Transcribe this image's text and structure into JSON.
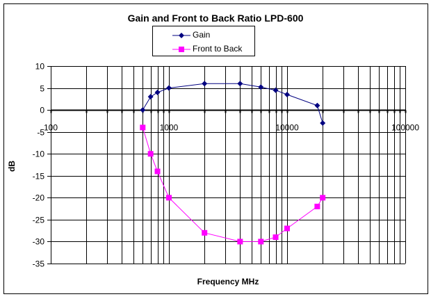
{
  "chart_data": {
    "type": "line",
    "title": "Gain and Front to Back Ratio LPD-600",
    "xlabel": "Frequency MHz",
    "ylabel": "dB",
    "xscale": "log",
    "xlim": [
      100,
      100000
    ],
    "ylim": [
      -35,
      10
    ],
    "x_ticks": [
      "100",
      "1000",
      "10000",
      "100000"
    ],
    "y_ticks": [
      "10",
      "5",
      "0",
      "-5",
      "-10",
      "-15",
      "-20",
      "-25",
      "-30",
      "-35"
    ],
    "grid": true,
    "legend_position": "top-center",
    "x": [
      600,
      700,
      800,
      1000,
      2000,
      4000,
      6000,
      8000,
      10000,
      18000,
      20000
    ],
    "series": [
      {
        "name": "Gain",
        "color": "#000080",
        "marker": "diamond",
        "values": [
          0,
          3,
          4,
          5,
          6,
          6,
          5.2,
          4.5,
          3.5,
          1,
          -3
        ]
      },
      {
        "name": "Front to Back",
        "color": "#FF00FF",
        "marker": "square",
        "values": [
          -4,
          -10,
          -14,
          -20,
          -28,
          -30,
          -30,
          -29,
          -27,
          -22,
          -20
        ]
      }
    ]
  },
  "legend": {
    "items": [
      {
        "label": "Gain"
      },
      {
        "label": "Front to Back"
      }
    ]
  }
}
